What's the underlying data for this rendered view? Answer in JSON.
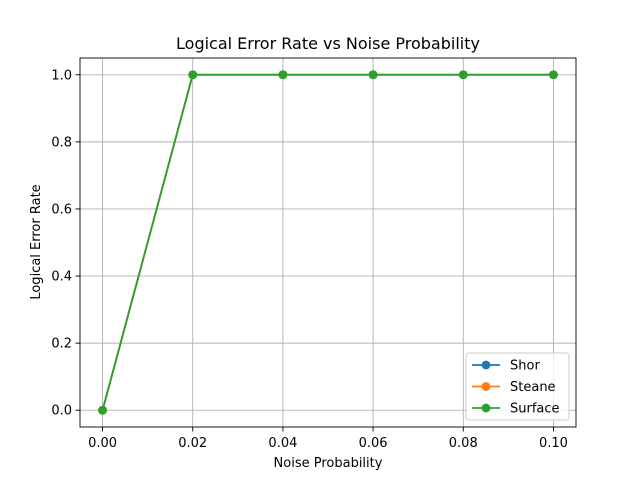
{
  "chart_data": {
    "type": "line",
    "title": "Logical Error Rate vs Noise Probability",
    "xlabel": "Noise Probability",
    "ylabel": "Logical Error Rate",
    "x": [
      0.0,
      0.02,
      0.04,
      0.06,
      0.08,
      0.1
    ],
    "xlim": [
      -0.005,
      0.105
    ],
    "ylim": [
      -0.05,
      1.05
    ],
    "xticks": [
      "0.00",
      "0.02",
      "0.04",
      "0.06",
      "0.08",
      "0.10"
    ],
    "yticks": [
      "0.0",
      "0.2",
      "0.4",
      "0.6",
      "0.8",
      "1.0"
    ],
    "grid": true,
    "legend_position": "lower-right",
    "series": [
      {
        "name": "Shor",
        "color": "#1f77b4",
        "values": [
          0.0,
          1.0,
          1.0,
          1.0,
          1.0,
          1.0
        ]
      },
      {
        "name": "Steane",
        "color": "#ff7f0e",
        "values": [
          0.0,
          1.0,
          1.0,
          1.0,
          1.0,
          1.0
        ]
      },
      {
        "name": "Surface",
        "color": "#2ca02c",
        "values": [
          0.0,
          1.0,
          1.0,
          1.0,
          1.0,
          1.0
        ]
      }
    ]
  }
}
